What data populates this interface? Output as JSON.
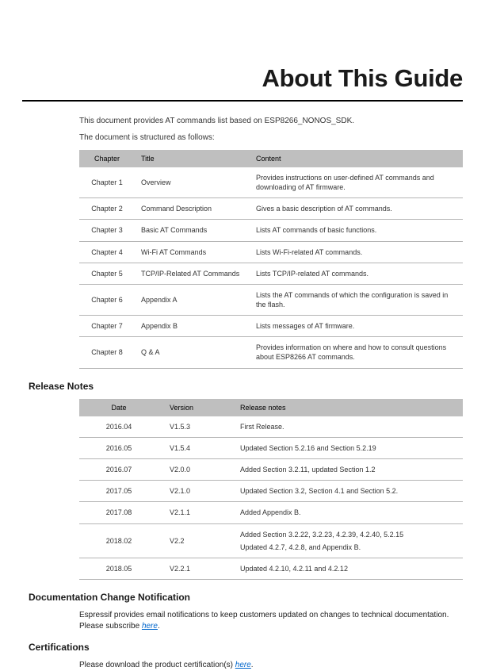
{
  "page_title": "About This Guide",
  "intro": {
    "line1": "This document provides AT commands list based on ESP8266_NONOS_SDK.",
    "line2": "The document is structured as follows:"
  },
  "chapters_table": {
    "headers": {
      "chapter": "Chapter",
      "title": "Title",
      "content": "Content"
    },
    "rows": [
      {
        "chapter": "Chapter 1",
        "title": "Overview",
        "content": "Provides instructions on user-defined AT commands and downloading of AT firmware."
      },
      {
        "chapter": "Chapter 2",
        "title": "Command Description",
        "content": "Gives a basic description of AT commands."
      },
      {
        "chapter": "Chapter 3",
        "title": "Basic AT Commands",
        "content": "Lists AT commands of basic functions."
      },
      {
        "chapter": "Chapter 4",
        "title": "Wi-Fi AT Commands",
        "content": "Lists Wi-Fi-related AT commands."
      },
      {
        "chapter": "Chapter 5",
        "title": "TCP/IP-Related AT Commands",
        "content": "Lists TCP/IP-related AT commands."
      },
      {
        "chapter": "Chapter 6",
        "title": "Appendix A",
        "content": "Lists the AT commands of which the configuration is saved in the flash."
      },
      {
        "chapter": "Chapter 7",
        "title": "Appendix B",
        "content": "Lists messages of AT firmware."
      },
      {
        "chapter": "Chapter 8",
        "title": "Q & A",
        "content": "Provides information on where and how to consult questions about ESP8266 AT commands."
      }
    ]
  },
  "sections": {
    "release_notes_heading": "Release Notes",
    "doc_change_heading": "Documentation Change Notification",
    "certifications_heading": "Certifications"
  },
  "release_table": {
    "headers": {
      "date": "Date",
      "version": "Version",
      "notes": "Release notes"
    },
    "rows": [
      {
        "date": "2016.04",
        "version": "V1.5.3",
        "notes": [
          "First Release."
        ]
      },
      {
        "date": "2016.05",
        "version": "V1.5.4",
        "notes": [
          "Updated Section 5.2.16 and Section 5.2.19"
        ]
      },
      {
        "date": "2016.07",
        "version": "V2.0.0",
        "notes": [
          "Added Section 3.2.11, updated Section 1.2"
        ]
      },
      {
        "date": "2017.05",
        "version": "V2.1.0",
        "notes": [
          "Updated Section 3.2, Section 4.1 and Section 5.2."
        ]
      },
      {
        "date": "2017.08",
        "version": "V2.1.1",
        "notes": [
          "Added Appendix B."
        ]
      },
      {
        "date": "2018.02",
        "version": "V2.2",
        "notes": [
          "Added Section 3.2.22, 3.2.23, 4.2.39, 4.2.40, 5.2.15",
          "Updated 4.2.7, 4.2.8, and Appendix B."
        ]
      },
      {
        "date": "2018.05",
        "version": "V2.2.1",
        "notes": [
          "Updated 4.2.10, 4.2.11 and 4.2.12"
        ]
      }
    ]
  },
  "doc_change": {
    "text_before": "Espressif provides email notifications to keep customers updated on changes to technical documentation. Please subscribe ",
    "link_text": "here",
    "text_after": "."
  },
  "certifications": {
    "text_before": "Please download the product certification(s) ",
    "link_text": "here",
    "text_after": "."
  }
}
